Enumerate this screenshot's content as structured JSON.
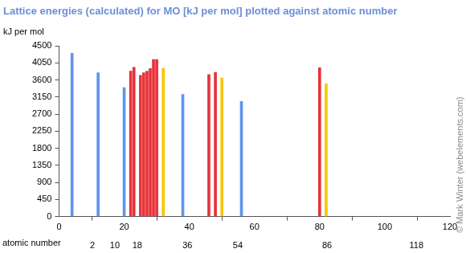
{
  "chart_data": {
    "type": "bar",
    "title": "Lattice energies (calculated) for MO [kJ per mol] plotted against atomic number",
    "ylabel": "kJ per mol",
    "x2label": "atomic number",
    "annotations": [
      "© Mark Winter (webelements.com)"
    ],
    "x": [
      4,
      12,
      20,
      22,
      23,
      25,
      26,
      27,
      28,
      29,
      30,
      32,
      38,
      46,
      48,
      50,
      56,
      80,
      82
    ],
    "values": [
      4300,
      3790,
      3400,
      3830,
      3930,
      3720,
      3790,
      3830,
      3900,
      4140,
      4140,
      3910,
      3220,
      3740,
      3800,
      3650,
      3030,
      3920,
      3500
    ],
    "colors": [
      "#5f95ec",
      "#5f95ec",
      "#5f95ec",
      "#e8323a",
      "#e8323a",
      "#e8323a",
      "#e8323a",
      "#e8323a",
      "#e8323a",
      "#e8323a",
      "#e8323a",
      "#f6c700",
      "#5f95ec",
      "#e8323a",
      "#e8323a",
      "#f6c700",
      "#5f95ec",
      "#e8323a",
      "#f6c700"
    ],
    "xlim": [
      0,
      120
    ],
    "xticks": [
      0,
      20,
      40,
      60,
      80,
      100,
      120
    ],
    "x2lim": [
      0,
      120
    ],
    "x2ticks": [
      2,
      10,
      18,
      36,
      54,
      86,
      118
    ],
    "ylim": [
      0,
      4500
    ],
    "yticks": [
      0,
      450,
      900,
      1350,
      1800,
      2250,
      2700,
      3150,
      3600,
      4050,
      4500
    ],
    "grid": false
  }
}
